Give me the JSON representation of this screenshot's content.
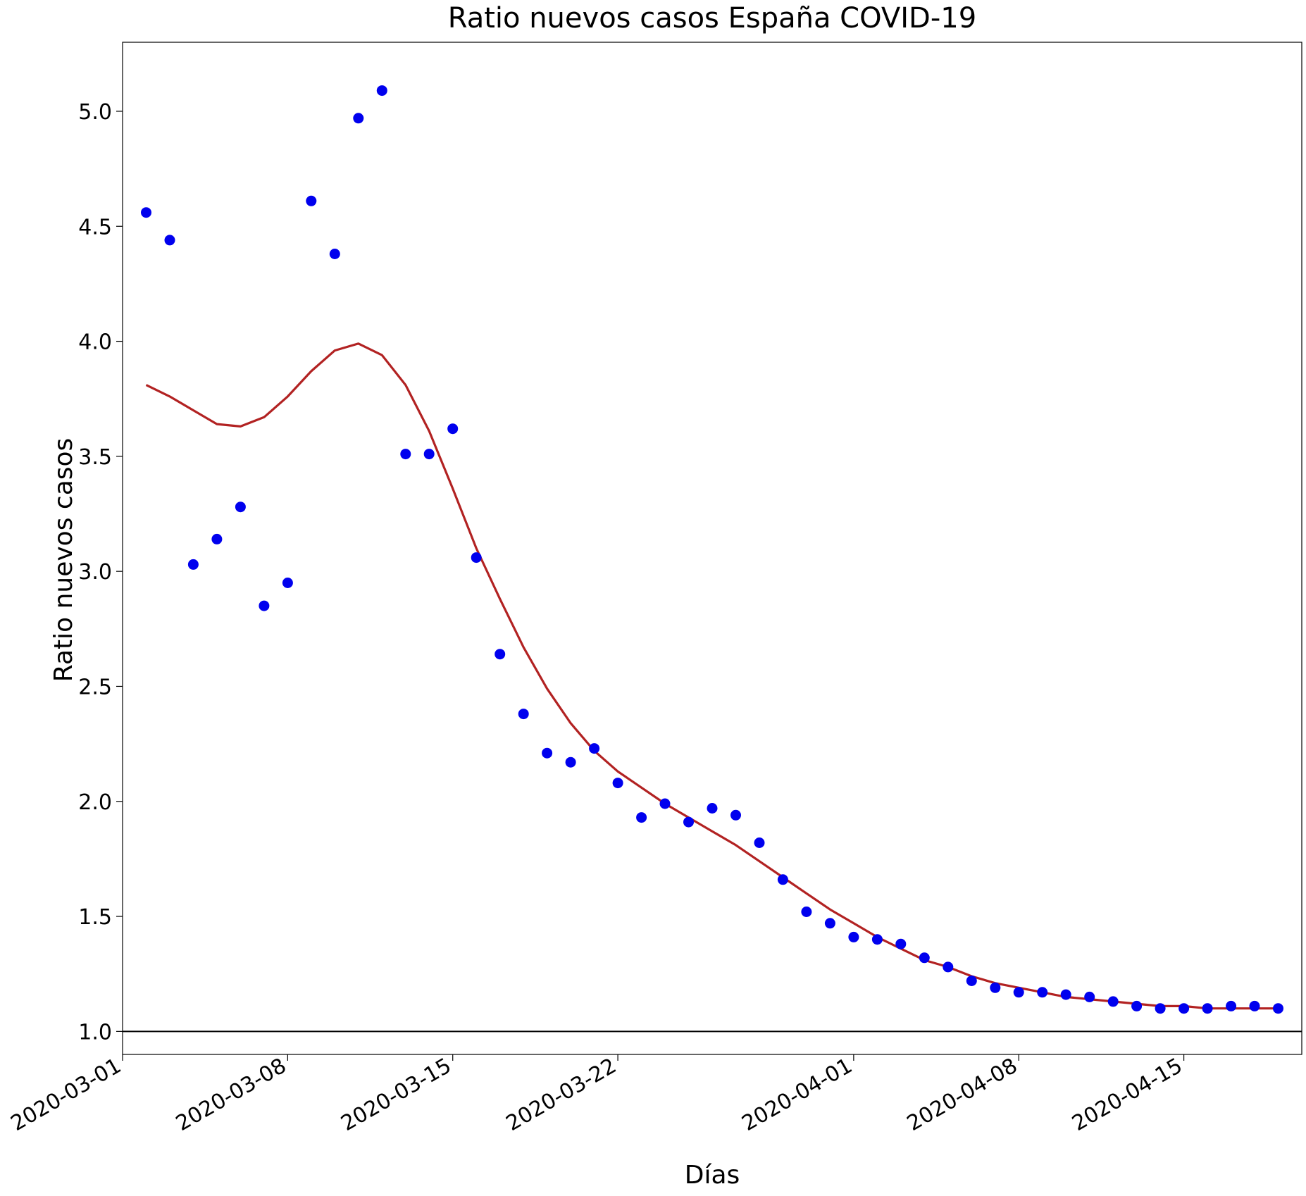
{
  "chart_data": {
    "type": "scatter",
    "title": "Ratio nuevos casos España COVID-19",
    "xlabel": "Días",
    "ylabel": "Ratio nuevos casos",
    "x_start": "2020-03-01",
    "xlim": [
      "2020-03-01",
      "2020-04-20"
    ],
    "ylim": [
      0.9,
      5.3
    ],
    "x_ticks": [
      "2020-03-01",
      "2020-03-08",
      "2020-03-15",
      "2020-03-22",
      "2020-04-01",
      "2020-04-08",
      "2020-04-15"
    ],
    "y_ticks": [
      "1.0",
      "1.5",
      "2.0",
      "2.5",
      "3.0",
      "3.5",
      "4.0",
      "4.5",
      "5.0"
    ],
    "grid": false,
    "reference_line": {
      "y": 1.0,
      "color": "#000000"
    },
    "series": [
      {
        "kind": "scatter",
        "color": "#0000ee",
        "x": [
          "2020-03-02",
          "2020-03-03",
          "2020-03-04",
          "2020-03-05",
          "2020-03-06",
          "2020-03-07",
          "2020-03-08",
          "2020-03-09",
          "2020-03-10",
          "2020-03-11",
          "2020-03-12",
          "2020-03-13",
          "2020-03-14",
          "2020-03-15",
          "2020-03-16",
          "2020-03-17",
          "2020-03-18",
          "2020-03-19",
          "2020-03-20",
          "2020-03-21",
          "2020-03-22",
          "2020-03-23",
          "2020-03-24",
          "2020-03-25",
          "2020-03-26",
          "2020-03-27",
          "2020-03-28",
          "2020-03-29",
          "2020-03-30",
          "2020-03-31",
          "2020-04-01",
          "2020-04-02",
          "2020-04-03",
          "2020-04-04",
          "2020-04-05",
          "2020-04-06",
          "2020-04-07",
          "2020-04-08",
          "2020-04-09",
          "2020-04-10",
          "2020-04-11",
          "2020-04-12",
          "2020-04-13",
          "2020-04-14",
          "2020-04-15",
          "2020-04-16",
          "2020-04-17",
          "2020-04-18",
          "2020-04-19"
        ],
        "y": [
          4.56,
          4.44,
          3.03,
          3.14,
          3.28,
          2.85,
          2.95,
          4.61,
          4.38,
          4.97,
          5.09,
          3.51,
          3.51,
          3.62,
          3.06,
          2.64,
          2.38,
          2.21,
          2.17,
          2.23,
          2.08,
          1.93,
          1.99,
          1.91,
          1.97,
          1.94,
          1.82,
          1.66,
          1.52,
          1.47,
          1.41,
          1.4,
          1.38,
          1.32,
          1.28,
          1.22,
          1.19,
          1.17,
          1.17,
          1.16,
          1.15,
          1.13,
          1.11,
          1.1,
          1.1,
          1.1,
          1.11,
          1.11,
          1.1
        ]
      },
      {
        "kind": "line",
        "color": "#b22222",
        "x": [
          "2020-03-02",
          "2020-03-03",
          "2020-03-04",
          "2020-03-05",
          "2020-03-06",
          "2020-03-07",
          "2020-03-08",
          "2020-03-09",
          "2020-03-10",
          "2020-03-11",
          "2020-03-12",
          "2020-03-13",
          "2020-03-14",
          "2020-03-15",
          "2020-03-16",
          "2020-03-17",
          "2020-03-18",
          "2020-03-19",
          "2020-03-20",
          "2020-03-21",
          "2020-03-22",
          "2020-03-23",
          "2020-03-24",
          "2020-03-25",
          "2020-03-26",
          "2020-03-27",
          "2020-03-28",
          "2020-03-29",
          "2020-03-30",
          "2020-03-31",
          "2020-04-01",
          "2020-04-02",
          "2020-04-03",
          "2020-04-04",
          "2020-04-05",
          "2020-04-06",
          "2020-04-07",
          "2020-04-08",
          "2020-04-09",
          "2020-04-10",
          "2020-04-11",
          "2020-04-12",
          "2020-04-13",
          "2020-04-14",
          "2020-04-15",
          "2020-04-16",
          "2020-04-17",
          "2020-04-18",
          "2020-04-19"
        ],
        "y": [
          3.81,
          3.76,
          3.7,
          3.64,
          3.63,
          3.67,
          3.76,
          3.87,
          3.96,
          3.99,
          3.94,
          3.81,
          3.61,
          3.36,
          3.1,
          2.88,
          2.67,
          2.49,
          2.34,
          2.22,
          2.13,
          2.06,
          1.99,
          1.93,
          1.87,
          1.81,
          1.74,
          1.67,
          1.6,
          1.53,
          1.47,
          1.41,
          1.36,
          1.31,
          1.28,
          1.24,
          1.21,
          1.19,
          1.17,
          1.15,
          1.14,
          1.13,
          1.12,
          1.11,
          1.11,
          1.1,
          1.1,
          1.1,
          1.1
        ]
      }
    ]
  }
}
